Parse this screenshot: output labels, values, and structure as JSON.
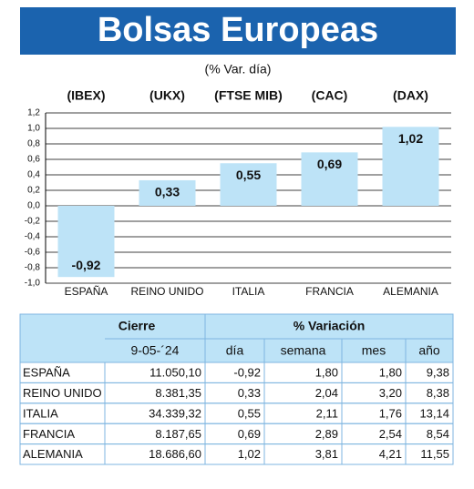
{
  "chart_data": {
    "type": "bar",
    "title": "Bolsas Europeas",
    "subtitle": "(% Var. día)",
    "index_labels": [
      "(IBEX)",
      "(UKX)",
      "(FTSE MIB)",
      "(CAC)",
      "(DAX)"
    ],
    "categories": [
      "ESPAÑA",
      "REINO UNIDO",
      "ITALIA",
      "FRANCIA",
      "ALEMANIA"
    ],
    "values": [
      -0.92,
      0.33,
      0.55,
      0.69,
      1.02
    ],
    "value_labels": [
      "-0,92",
      "0,33",
      "0,55",
      "0,69",
      "1,02"
    ],
    "color": "#bde3f7",
    "ylim": [
      -1.0,
      1.2
    ],
    "yticks": [
      {
        "value": 1.2,
        "label": "1,2"
      },
      {
        "value": 1.0,
        "label": "1,0"
      },
      {
        "value": 0.8,
        "label": "0,8"
      },
      {
        "value": 0.6,
        "label": "0,6"
      },
      {
        "value": 0.4,
        "label": "0,4"
      },
      {
        "value": 0.2,
        "label": "0,2"
      },
      {
        "value": 0.0,
        "label": "0,0"
      },
      {
        "value": -0.2,
        "label": "-0,2"
      },
      {
        "value": -0.4,
        "label": "-0,4"
      },
      {
        "value": -0.6,
        "label": "-0,6"
      },
      {
        "value": -0.8,
        "label": "-0,8"
      },
      {
        "value": -1.0,
        "label": "-1,0"
      }
    ],
    "grid": true
  },
  "table": {
    "header": [
      [
        "Cierre",
        "% Variación"
      ],
      [
        "9-05-´24",
        "día",
        "semana",
        "mes",
        "año"
      ]
    ],
    "rows": [
      [
        "ESPAÑA",
        "11.050,10",
        "-0,92",
        "1,80",
        "1,80",
        "9,38"
      ],
      [
        "REINO UNIDO",
        "8.381,35",
        "0,33",
        "2,04",
        "3,20",
        "8,38"
      ],
      [
        "ITALIA",
        "34.339,32",
        "0,55",
        "2,11",
        "1,76",
        "13,14"
      ],
      [
        "FRANCIA",
        "8.187,65",
        "0,69",
        "2,89",
        "2,54",
        "8,54"
      ],
      [
        "ALEMANIA",
        "18.686,60",
        "1,02",
        "3,81",
        "4,21",
        "11,55"
      ]
    ]
  }
}
